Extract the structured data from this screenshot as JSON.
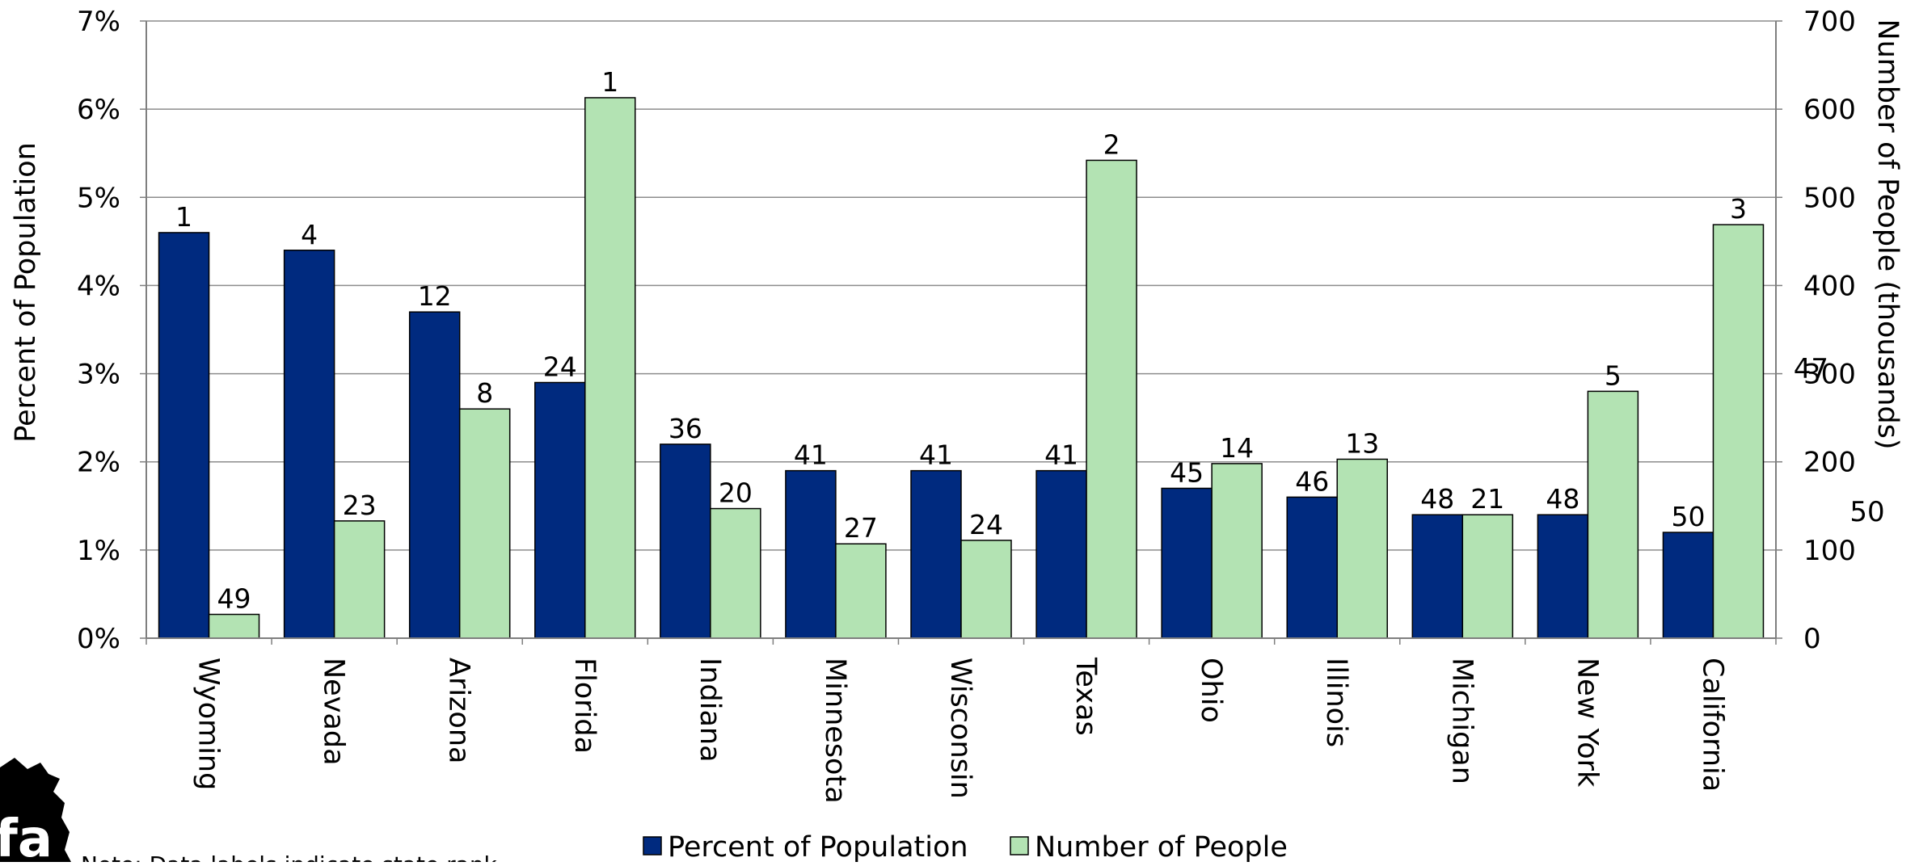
{
  "chart_data": {
    "type": "bar",
    "title": "",
    "categories": [
      "Wyoming",
      "Nevada",
      "Arizona",
      "Florida",
      "Indiana",
      "Minnesota",
      "Wisconsin",
      "Texas",
      "Ohio",
      "Illinois",
      "Michigan",
      "New York",
      "California"
    ],
    "series": [
      {
        "name": "Percent of Population",
        "axis": "left",
        "unit": "%",
        "color": "#002A7F",
        "values": [
          4.6,
          4.4,
          3.7,
          2.9,
          2.2,
          1.9,
          1.9,
          1.9,
          1.7,
          1.6,
          1.4,
          1.4,
          1.2
        ],
        "labels": [
          "1",
          "4",
          "12",
          "24",
          "36",
          "41",
          "41",
          "41",
          "45",
          "46",
          "48",
          "48",
          "50"
        ]
      },
      {
        "name": "Number of People",
        "axis": "right",
        "unit": "thousands",
        "color": "#B3E3B3",
        "values": [
          27,
          133,
          260,
          613,
          147,
          107,
          111,
          542,
          198,
          203,
          140,
          280,
          469
        ],
        "labels": [
          "49",
          "23",
          "8",
          "1",
          "20",
          "27",
          "24",
          "2",
          "14",
          "13",
          "21",
          "5",
          "3"
        ]
      }
    ],
    "ylabel": "Percent of Population",
    "y2label": "Number of People (thousands)",
    "ylim": [
      0,
      7
    ],
    "y2lim": [
      0,
      700
    ],
    "yticks": [
      "0%",
      "1%",
      "2%",
      "3%",
      "4%",
      "5%",
      "6%",
      "7%"
    ],
    "y2ticks": [
      "0",
      "100",
      "200",
      "300",
      "400",
      "500",
      "600",
      "700"
    ],
    "grid": true,
    "legend": "bottom-center",
    "stray_right_labels": [
      "47",
      "50"
    ],
    "note": "Note: Data labels indicate state rank"
  },
  "colors": {
    "left_series": "#002A7F",
    "right_series": "#B3E3B3",
    "grid": "#8C8C8C",
    "axis": "#7F7F7F",
    "bar_outline": "#000000"
  },
  "logo": {
    "icon": "michigan-map-logo-icon",
    "text": "fa"
  }
}
